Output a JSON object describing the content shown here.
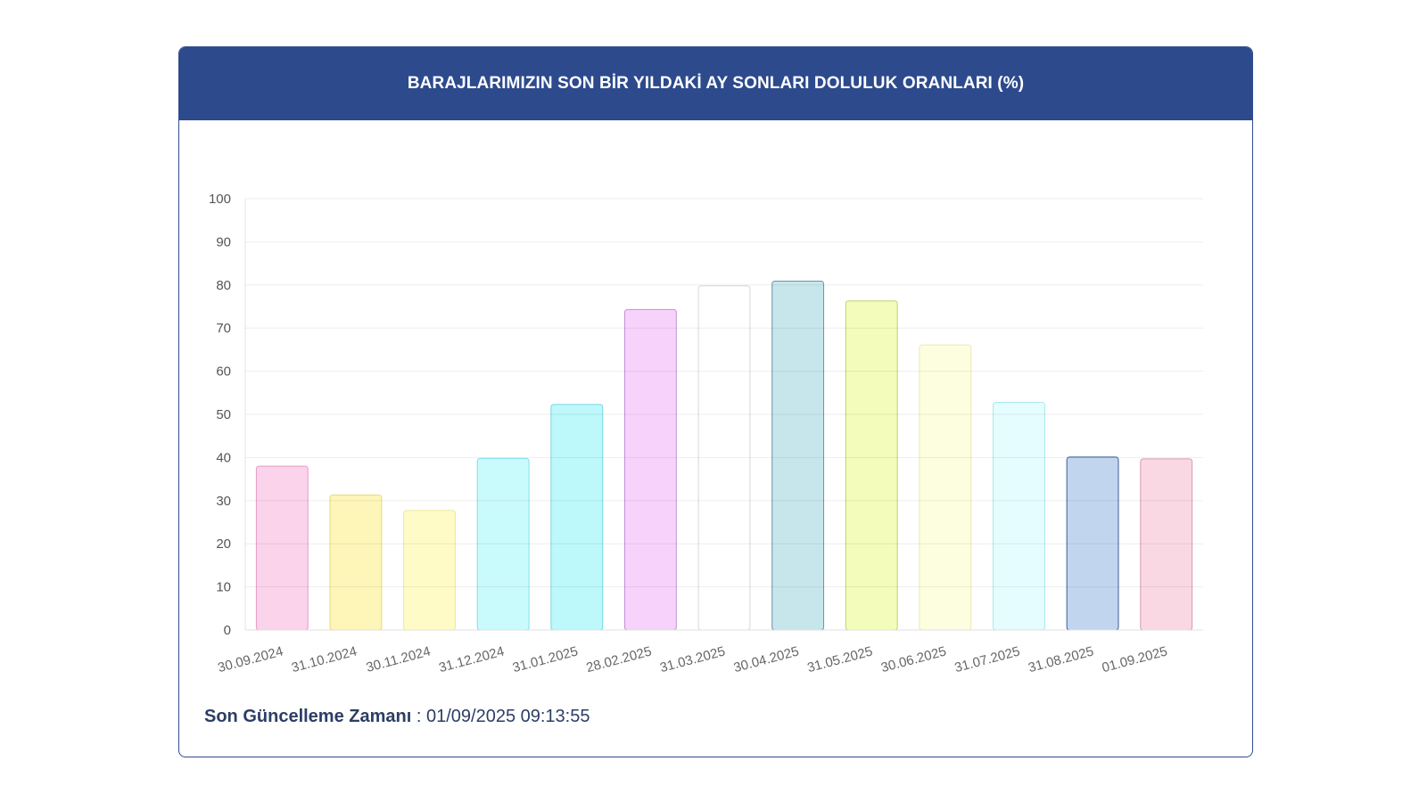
{
  "header": {
    "title": "BARAJLARIMIZIN SON BİR YILDAKİ AY SONLARI DOLULUK ORANLARI (%)"
  },
  "footer": {
    "label": "Son Güncelleme Zamanı",
    "separator": " : ",
    "value": "01/09/2025 09:13:55"
  },
  "chart_data": {
    "type": "bar",
    "categories": [
      "30.09.2024",
      "31.10.2024",
      "30.11.2024",
      "31.12.2024",
      "31.01.2025",
      "28.02.2025",
      "31.03.2025",
      "30.04.2025",
      "31.05.2025",
      "30.06.2025",
      "31.07.2025",
      "31.08.2025",
      "01.09.2025"
    ],
    "values": [
      38,
      31.3,
      27.7,
      39.8,
      52.3,
      74.3,
      79.8,
      80.9,
      76.3,
      66.1,
      52.8,
      40.1,
      39.7
    ],
    "colors": [
      "#fbd3ea",
      "#fdf6b8",
      "#fefbc6",
      "#c9fbfc",
      "#bdf8fb",
      "#f7d3fc",
      "#ffffff",
      "#c7e6ec",
      "#f3fcba",
      "#fdfee0",
      "#e5fdfe",
      "#c2d5ef",
      "#f9d8e4"
    ],
    "borders": [
      "#e79bc6",
      "#e9d97a",
      "#ece89e",
      "#86dde6",
      "#78d6de",
      "#c58fd6",
      "#d8d8d8",
      "#5f9aa8",
      "#c2ce74",
      "#ece9b0",
      "#a8e8ec",
      "#3c5f95",
      "#d89ab0"
    ],
    "ylim": [
      0,
      100
    ],
    "yticks": [
      0,
      10,
      20,
      30,
      40,
      50,
      60,
      70,
      80,
      90,
      100
    ],
    "grid": true,
    "xlabel": "",
    "ylabel": ""
  }
}
